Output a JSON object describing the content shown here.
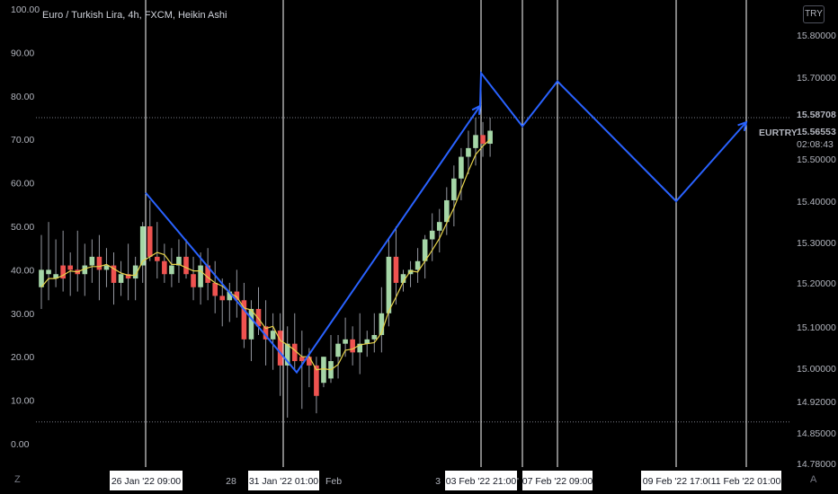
{
  "header": {
    "title": "Euro / Turkish Lira, 4h, FXCM, Heikin Ashi",
    "currency": "TRY"
  },
  "left_axis": {
    "ticks": [
      "100.00",
      "90.00",
      "80.00",
      "70.00",
      "60.00",
      "50.00",
      "40.00",
      "30.00",
      "20.00",
      "10.00",
      "0.00"
    ]
  },
  "right_axis": {
    "ticks": [
      "15.80000",
      "15.70000",
      "15.50000",
      "15.40000",
      "15.30000",
      "15.20000",
      "15.10000",
      "15.00000",
      "14.92000",
      "14.85000",
      "14.78000"
    ],
    "price_label_1": "15.58708",
    "price_label_2": "15.56553",
    "countdown": "02:08:43",
    "symbol_label": "EURTRY"
  },
  "time_axis": {
    "boxed": [
      {
        "text": "26 Jan '22   09:00"
      },
      {
        "text": "31 Jan '22   01:00"
      },
      {
        "text": "03 Feb '22   21:00"
      },
      {
        "text": "07 Feb '22   09:00"
      },
      {
        "text": "09 Feb '22   17:00"
      },
      {
        "text": "11 Feb '22   01:00"
      }
    ],
    "plain": [
      "28",
      "Feb",
      "3",
      "'"
    ]
  },
  "controls": {
    "z_label": "Z",
    "a_label": "A"
  },
  "colors": {
    "background": "#000000",
    "up": "#a5d6a7",
    "down": "#ef5350",
    "zigzag": "#2962ff",
    "ma": "#e6d34a",
    "vline": "#ffffff",
    "dotted": "#787b86"
  },
  "chart_data": {
    "type": "candlestick",
    "ylim_left": [
      0,
      100
    ],
    "levels_left": [
      75,
      5
    ],
    "candles_left_units": [
      [
        40,
        48,
        31,
        36,
        "u"
      ],
      [
        39,
        51,
        33,
        40,
        "u"
      ],
      [
        39,
        47,
        36,
        38,
        "u"
      ],
      [
        38,
        49,
        35,
        41,
        "d"
      ],
      [
        41,
        44,
        34,
        40,
        "d"
      ],
      [
        40,
        49,
        35,
        39,
        "d"
      ],
      [
        39,
        46,
        34,
        41,
        "u"
      ],
      [
        41,
        47,
        37,
        43,
        "u"
      ],
      [
        43,
        48,
        33,
        40,
        "d"
      ],
      [
        40,
        45,
        36,
        41,
        "u"
      ],
      [
        41,
        44,
        32,
        37,
        "d"
      ],
      [
        37,
        42,
        34,
        39,
        "u"
      ],
      [
        39,
        46,
        33,
        38,
        "d"
      ],
      [
        38,
        43,
        33,
        41,
        "u"
      ],
      [
        41,
        51,
        37,
        50,
        "u"
      ],
      [
        50,
        56,
        42,
        43,
        "d"
      ],
      [
        43,
        51,
        38,
        42,
        "d"
      ],
      [
        42,
        46,
        37,
        39,
        "d"
      ],
      [
        39,
        45,
        36,
        41,
        "u"
      ],
      [
        41,
        47,
        37,
        43,
        "u"
      ],
      [
        43,
        47,
        38,
        39,
        "d"
      ],
      [
        39,
        43,
        33,
        36,
        "d"
      ],
      [
        36,
        44,
        32,
        41,
        "u"
      ],
      [
        41,
        45,
        33,
        37,
        "d"
      ],
      [
        37,
        42,
        30,
        34,
        "d"
      ],
      [
        34,
        38,
        27,
        33,
        "d"
      ],
      [
        33,
        37,
        28,
        35,
        "u"
      ],
      [
        35,
        40,
        29,
        33,
        "d"
      ],
      [
        33,
        37,
        22,
        24,
        "d"
      ],
      [
        24,
        33,
        19,
        31,
        "u"
      ],
      [
        31,
        36,
        25,
        27,
        "d"
      ],
      [
        27,
        33,
        18,
        24,
        "d"
      ],
      [
        24,
        30,
        17,
        26,
        "u"
      ],
      [
        26,
        30,
        11,
        18,
        "d"
      ],
      [
        18,
        27,
        6,
        23,
        "u"
      ],
      [
        23,
        30,
        17,
        19,
        "d"
      ],
      [
        19,
        26,
        8,
        20,
        "d"
      ],
      [
        20,
        22,
        13,
        18,
        "d"
      ],
      [
        18,
        20,
        7,
        11,
        "d"
      ],
      [
        14,
        20,
        13,
        20,
        "u"
      ],
      [
        15,
        25,
        14,
        19,
        "u"
      ],
      [
        20,
        25,
        15,
        23,
        "u"
      ],
      [
        23,
        29,
        20,
        24,
        "u"
      ],
      [
        24,
        27,
        18,
        21,
        "d"
      ],
      [
        21,
        30,
        16,
        23,
        "u"
      ],
      [
        23,
        26,
        20,
        24,
        "u"
      ],
      [
        24,
        30,
        21,
        25,
        "u"
      ],
      [
        25,
        36,
        21,
        30,
        "u"
      ],
      [
        30,
        47,
        27,
        43,
        "u"
      ],
      [
        43,
        50,
        32,
        37,
        "d"
      ],
      [
        37,
        40,
        35,
        39,
        "u"
      ],
      [
        39,
        42,
        36,
        40,
        "u"
      ],
      [
        40,
        45,
        37,
        42,
        "u"
      ],
      [
        42,
        48,
        38,
        47,
        "u"
      ],
      [
        47,
        53,
        42,
        49,
        "u"
      ],
      [
        49,
        54,
        44,
        51,
        "u"
      ],
      [
        51,
        59,
        48,
        56,
        "u"
      ],
      [
        56,
        64,
        50,
        61,
        "u"
      ],
      [
        61,
        68,
        56,
        66,
        "u"
      ],
      [
        66,
        72,
        62,
        68,
        "u"
      ],
      [
        68,
        75,
        64,
        71,
        "u"
      ],
      [
        71,
        74,
        66,
        69,
        "d"
      ],
      [
        69,
        75,
        66,
        72,
        "u"
      ]
    ],
    "zigzag_right_units": [
      [
        "26 Jan '22 09:00",
        15.42
      ],
      [
        "31 Jan '22 01:00",
        14.99
      ],
      [
        "03 Feb '22 21:00",
        15.63
      ],
      [
        "03 Feb '22 21:00",
        15.71
      ],
      [
        "",
        15.58
      ],
      [
        "07 Feb '22 09:00",
        15.69
      ],
      [
        "09 Feb '22 17:00",
        15.4
      ],
      [
        "11 Feb '22 01:00",
        15.59
      ]
    ]
  }
}
